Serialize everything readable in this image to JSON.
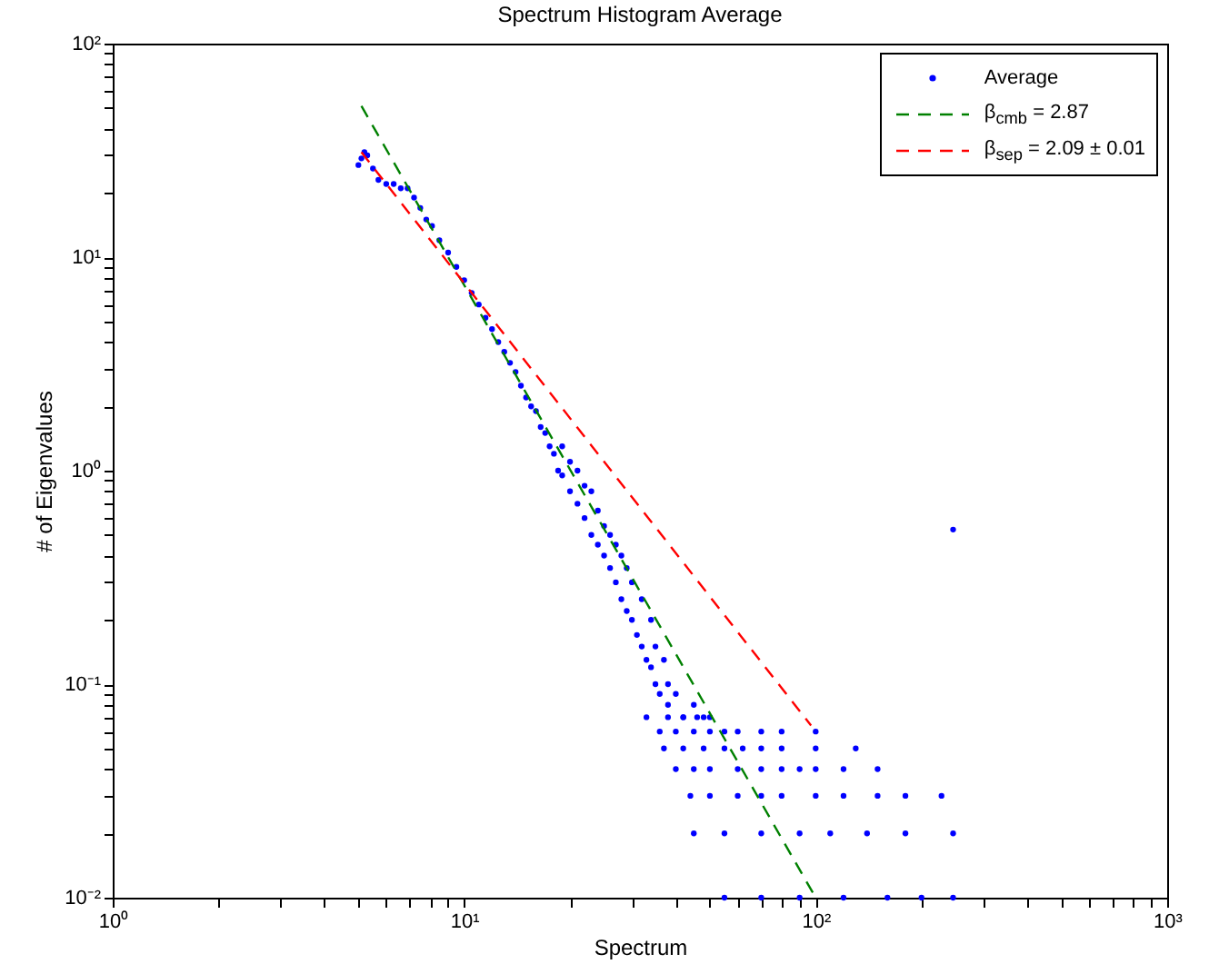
{
  "chart_data": {
    "type": "scatter",
    "title": "Spectrum Histogram Average",
    "xlabel": "Spectrum",
    "ylabel": "# of Eigenvalues",
    "log": "xy",
    "grid": false,
    "legend": "top right",
    "xlim": [
      1,
      1000
    ],
    "xticks": [
      {
        "value": 1,
        "label": "10⁰"
      },
      {
        "value": 2,
        "label": null
      },
      {
        "value": 3,
        "label": null
      },
      {
        "value": 4,
        "label": null
      },
      {
        "value": 5,
        "label": null
      },
      {
        "value": 6,
        "label": null
      },
      {
        "value": 7,
        "label": null
      },
      {
        "value": 8,
        "label": null
      },
      {
        "value": 9,
        "label": null
      },
      {
        "value": 10,
        "label": "10¹"
      },
      {
        "value": 20,
        "label": null
      },
      {
        "value": 30,
        "label": null
      },
      {
        "value": 40,
        "label": null
      },
      {
        "value": 50,
        "label": null
      },
      {
        "value": 60,
        "label": null
      },
      {
        "value": 70,
        "label": null
      },
      {
        "value": 80,
        "label": null
      },
      {
        "value": 90,
        "label": null
      },
      {
        "value": 100,
        "label": "10²"
      },
      {
        "value": 200,
        "label": null
      },
      {
        "value": 300,
        "label": null
      },
      {
        "value": 400,
        "label": null
      },
      {
        "value": 500,
        "label": null
      },
      {
        "value": 600,
        "label": null
      },
      {
        "value": 700,
        "label": null
      },
      {
        "value": 800,
        "label": null
      },
      {
        "value": 900,
        "label": null
      },
      {
        "value": 1000,
        "label": "10³"
      }
    ],
    "ylim": [
      0.01,
      100
    ],
    "yticks": [
      {
        "value": 0.01,
        "label": "10⁻²"
      },
      {
        "value": 0.02,
        "label": null
      },
      {
        "value": 0.03,
        "label": null
      },
      {
        "value": 0.04,
        "label": null
      },
      {
        "value": 0.05,
        "label": null
      },
      {
        "value": 0.06,
        "label": null
      },
      {
        "value": 0.07,
        "label": null
      },
      {
        "value": 0.08,
        "label": null
      },
      {
        "value": 0.09,
        "label": null
      },
      {
        "value": 0.1,
        "label": "10⁻¹"
      },
      {
        "value": 0.2,
        "label": null
      },
      {
        "value": 0.3,
        "label": null
      },
      {
        "value": 0.4,
        "label": null
      },
      {
        "value": 0.5,
        "label": null
      },
      {
        "value": 0.6,
        "label": null
      },
      {
        "value": 0.7,
        "label": null
      },
      {
        "value": 0.8,
        "label": null
      },
      {
        "value": 0.9,
        "label": null
      },
      {
        "value": 1,
        "label": "10⁰"
      },
      {
        "value": 2,
        "label": null
      },
      {
        "value": 3,
        "label": null
      },
      {
        "value": 4,
        "label": null
      },
      {
        "value": 5,
        "label": null
      },
      {
        "value": 6,
        "label": null
      },
      {
        "value": 7,
        "label": null
      },
      {
        "value": 8,
        "label": null
      },
      {
        "value": 9,
        "label": null
      },
      {
        "value": 10,
        "label": "10¹"
      },
      {
        "value": 20,
        "label": null
      },
      {
        "value": 30,
        "label": null
      },
      {
        "value": 40,
        "label": null
      },
      {
        "value": 50,
        "label": null
      },
      {
        "value": 60,
        "label": null
      },
      {
        "value": 70,
        "label": null
      },
      {
        "value": 80,
        "label": null
      },
      {
        "value": 90,
        "label": null
      },
      {
        "value": 100,
        "label": "10²"
      }
    ],
    "series": [
      {
        "name": "Average",
        "type": "scatter",
        "color": "#0000ff",
        "marker": "circle",
        "x": [
          5.0,
          5.1,
          5.2,
          5.3,
          5.5,
          5.7,
          6.0,
          6.3,
          6.6,
          6.9,
          7.2,
          7.5,
          7.8,
          8.1,
          8.5,
          9.0,
          9.5,
          10,
          10.5,
          11,
          11.5,
          12,
          12.5,
          13,
          13.5,
          14,
          14.5,
          15,
          15.5,
          16,
          16.5,
          17,
          17.5,
          18,
          18.5,
          19,
          19,
          20,
          20,
          21,
          21,
          22,
          22,
          23,
          23,
          24,
          24,
          25,
          25,
          26,
          26,
          27,
          27,
          28,
          28,
          29,
          29,
          30,
          30,
          31,
          32,
          32,
          33,
          34,
          34,
          35,
          35,
          36,
          37,
          38,
          38,
          40,
          42,
          45,
          48,
          33,
          38,
          42,
          46,
          50,
          36,
          40,
          45,
          50,
          55,
          60,
          70,
          80,
          100,
          37,
          42,
          48,
          55,
          62,
          70,
          80,
          100,
          130,
          40,
          45,
          50,
          60,
          70,
          80,
          90,
          100,
          120,
          150,
          44,
          50,
          60,
          70,
          80,
          100,
          120,
          150,
          180,
          228,
          45,
          55,
          70,
          90,
          110,
          140,
          180,
          246,
          55,
          70,
          90,
          120,
          160,
          200,
          246,
          246
        ],
        "values": [
          27,
          29,
          31,
          30,
          26,
          23,
          22,
          22,
          21,
          21,
          19,
          17,
          15,
          14,
          12,
          10.5,
          9,
          7.8,
          6.8,
          6.0,
          5.2,
          4.6,
          4.0,
          3.6,
          3.2,
          2.9,
          2.5,
          2.2,
          2.0,
          1.9,
          1.6,
          1.5,
          1.3,
          1.2,
          1.0,
          0.95,
          1.3,
          0.8,
          1.1,
          0.7,
          1.0,
          0.6,
          0.85,
          0.5,
          0.8,
          0.45,
          0.65,
          0.4,
          0.55,
          0.35,
          0.5,
          0.3,
          0.45,
          0.25,
          0.4,
          0.22,
          0.35,
          0.2,
          0.3,
          0.17,
          0.15,
          0.25,
          0.13,
          0.2,
          0.12,
          0.1,
          0.15,
          0.09,
          0.13,
          0.08,
          0.1,
          0.09,
          0.07,
          0.08,
          0.07,
          0.07,
          0.07,
          0.07,
          0.07,
          0.07,
          0.06,
          0.06,
          0.06,
          0.06,
          0.06,
          0.06,
          0.06,
          0.06,
          0.06,
          0.05,
          0.05,
          0.05,
          0.05,
          0.05,
          0.05,
          0.05,
          0.05,
          0.05,
          0.04,
          0.04,
          0.04,
          0.04,
          0.04,
          0.04,
          0.04,
          0.04,
          0.04,
          0.04,
          0.03,
          0.03,
          0.03,
          0.03,
          0.03,
          0.03,
          0.03,
          0.03,
          0.03,
          0.03,
          0.02,
          0.02,
          0.02,
          0.02,
          0.02,
          0.02,
          0.02,
          0.02,
          0.01,
          0.01,
          0.01,
          0.01,
          0.01,
          0.01,
          0.01,
          0.53
        ]
      },
      {
        "name": "β$_{cmb}$ = 2.87",
        "type": "line",
        "color": "#008000",
        "line_style": "dashed",
        "marker": "none",
        "x": [
          5.1,
          100
        ],
        "values": [
          51,
          0.01
        ]
      },
      {
        "name": "β$_{sep}$ = 2.09 ± 0.01",
        "type": "line",
        "color": "#ff0000",
        "line_style": "dashed",
        "marker": "none",
        "x": [
          5.1,
          97
        ],
        "values": [
          31,
          0.064
        ]
      }
    ]
  }
}
